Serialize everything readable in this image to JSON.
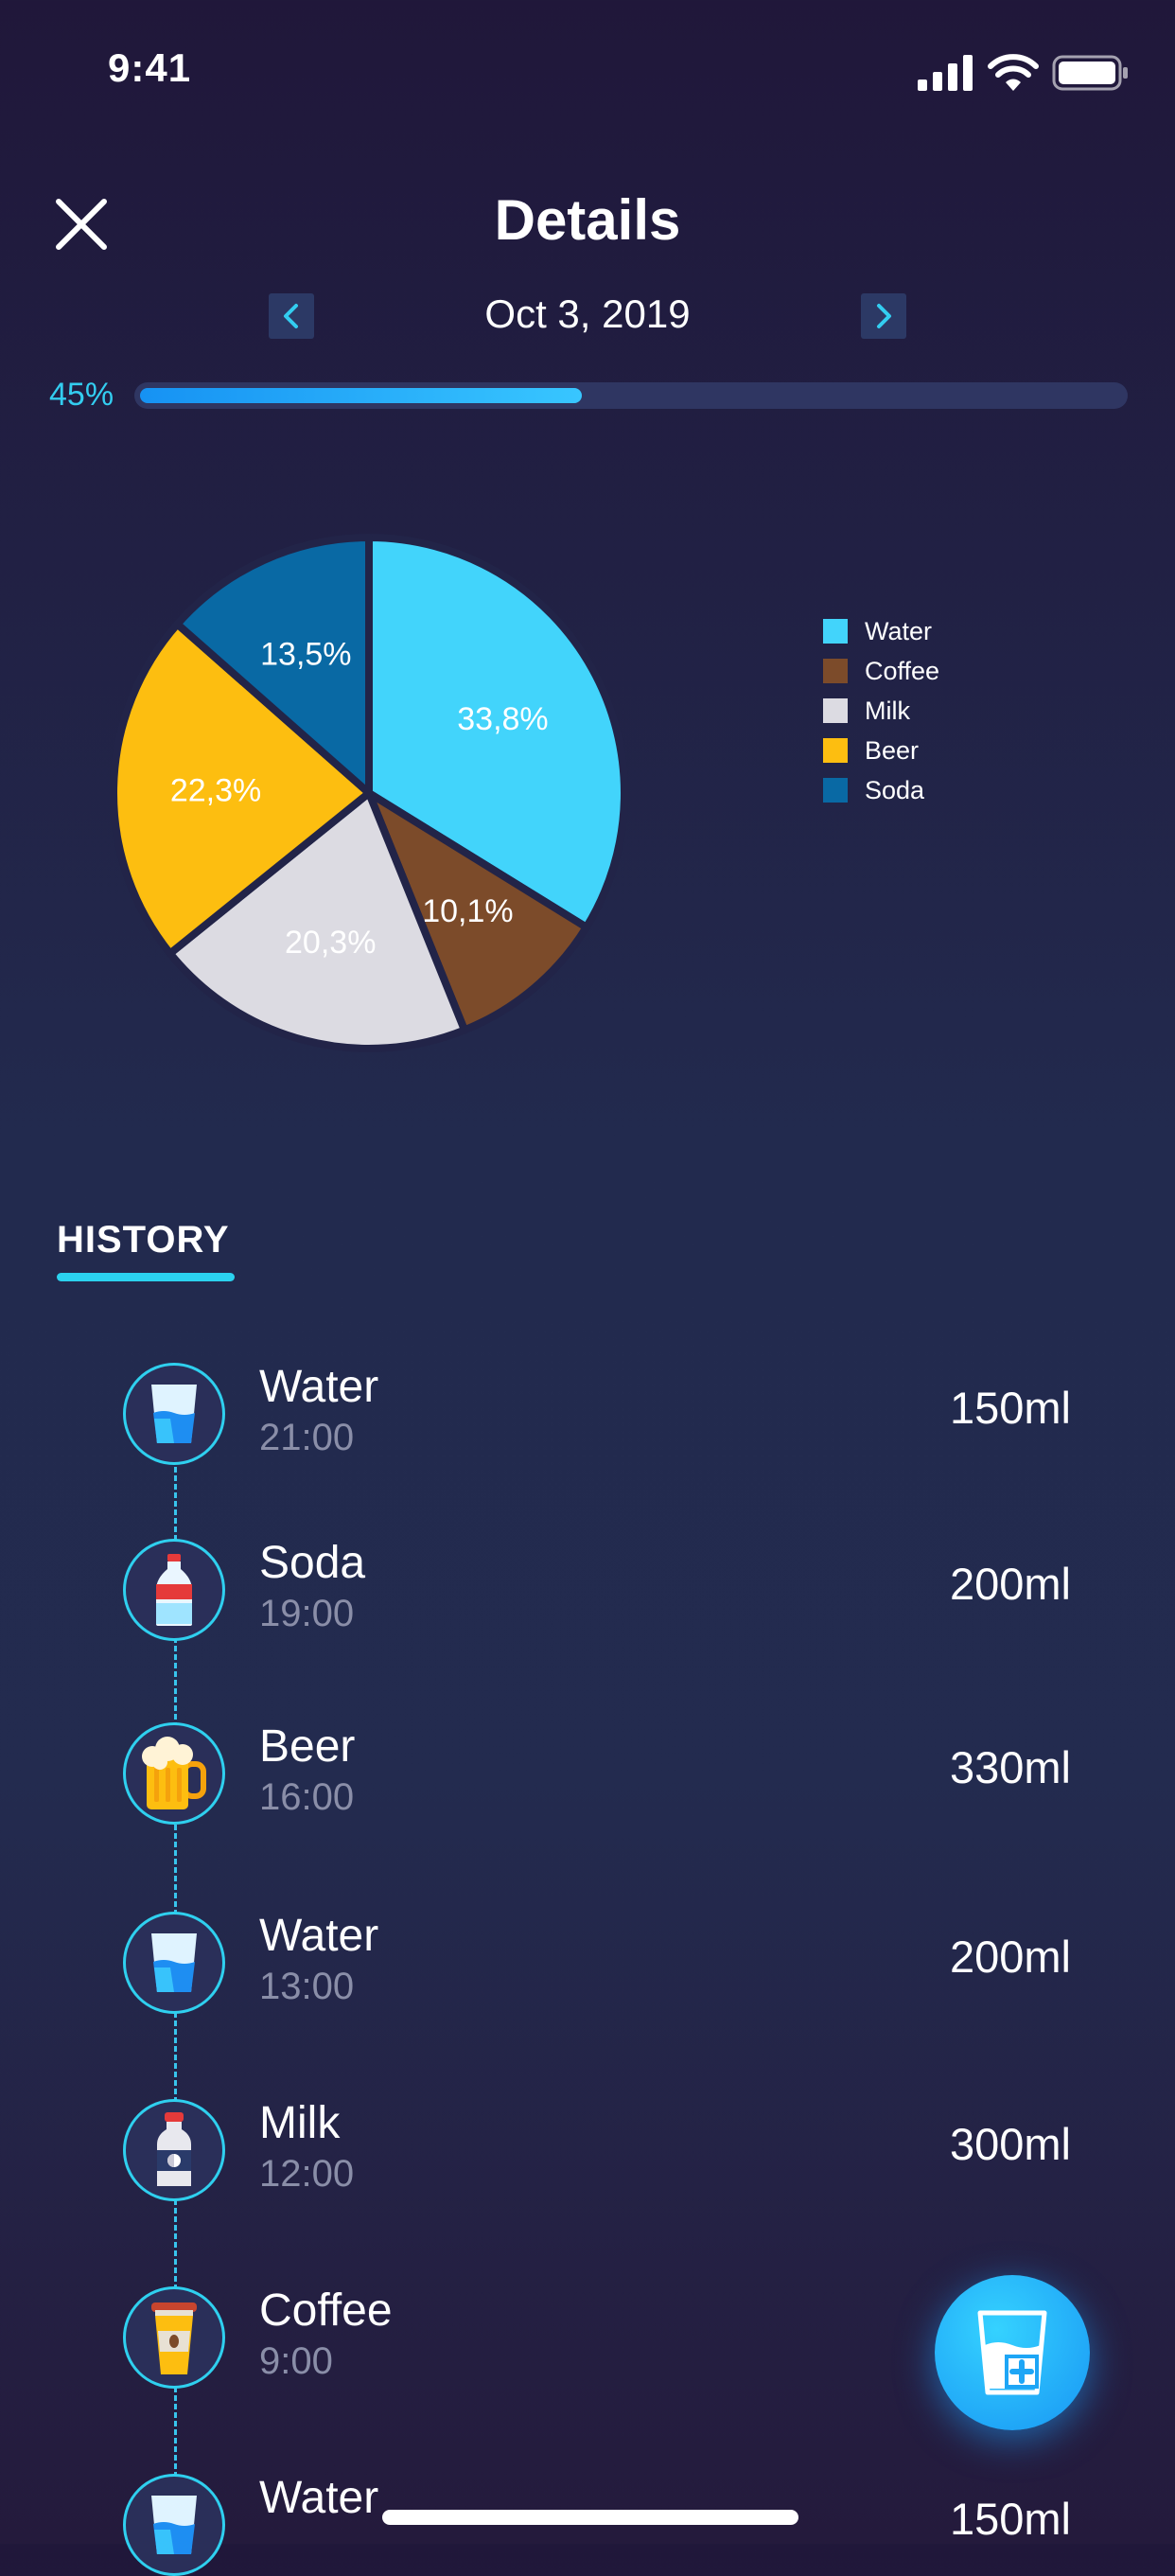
{
  "status_bar": {
    "time": "9:41"
  },
  "header": {
    "title": "Details",
    "date": "Oct 3, 2019"
  },
  "progress": {
    "label": "45%",
    "value": 0.45
  },
  "chart_data": {
    "type": "pie",
    "categories": [
      "Water",
      "Coffee",
      "Milk",
      "Beer",
      "Soda"
    ],
    "values": [
      33.8,
      10.1,
      20.3,
      22.3,
      13.5
    ],
    "labels": [
      "33,8%",
      "10,1%",
      "20,3%",
      "22,3%",
      "13,5%"
    ],
    "colors": [
      "#42d4fb",
      "#7c4b2a",
      "#dcdbe2",
      "#fdbe10",
      "#0969a4"
    ],
    "legend": "right"
  },
  "history": {
    "title": "HISTORY",
    "items": [
      {
        "name": "Water",
        "time": "21:00",
        "amount": "150ml",
        "icon": "water-glass-icon"
      },
      {
        "name": "Soda",
        "time": "19:00",
        "amount": "200ml",
        "icon": "soda-bottle-icon"
      },
      {
        "name": "Beer",
        "time": "16:00",
        "amount": "330ml",
        "icon": "beer-mug-icon"
      },
      {
        "name": "Water",
        "time": "13:00",
        "amount": "200ml",
        "icon": "water-glass-icon"
      },
      {
        "name": "Milk",
        "time": "12:00",
        "amount": "300ml",
        "icon": "milk-bottle-icon"
      },
      {
        "name": "Coffee",
        "time": "9:00",
        "amount": "",
        "icon": "coffee-cup-icon"
      },
      {
        "name": "Water",
        "time": "",
        "amount": "150ml",
        "icon": "water-glass-icon"
      }
    ]
  },
  "fab": {
    "icon": "add-drink-icon"
  }
}
